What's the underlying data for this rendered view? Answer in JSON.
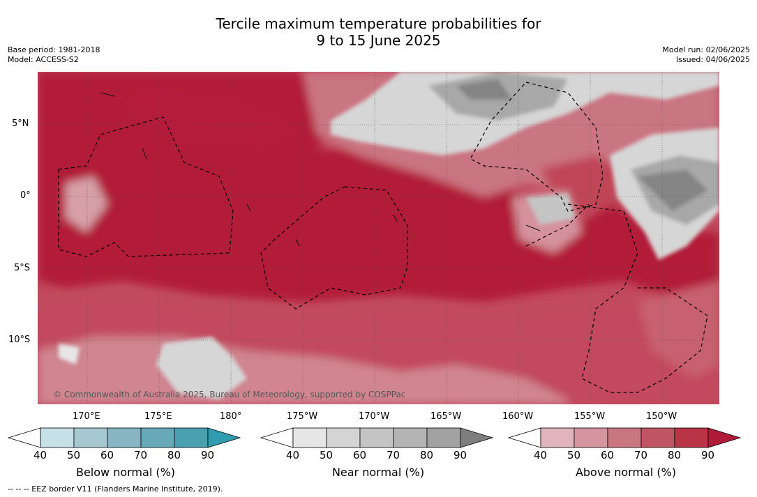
{
  "title": {
    "line1": "Tercile maximum temperature probabilities for",
    "line2": "9 to 15 June 2025"
  },
  "left_meta": {
    "base_period": "Base period: 1981-2018",
    "model": "Model: ACCESS-S2"
  },
  "right_meta": {
    "model_run": "Model run: 02/06/2025",
    "issued": "Issued: 04/06/2025"
  },
  "copyright": "© Commonwealth of Australia 2025, Bureau of Meteorology, supported by COSPPac",
  "lat_ticks": [
    "5°N",
    "0°",
    "5°S",
    "10°S"
  ],
  "lon_ticks": [
    "170°E",
    "175°E",
    "180°",
    "175°W",
    "170°W",
    "165°W",
    "160°W",
    "155°W",
    "150°W"
  ],
  "colorbars": [
    {
      "label": "Below normal (%)",
      "ticks": [
        "40",
        "50",
        "60",
        "70",
        "80",
        "90"
      ],
      "colors": [
        "#ffffff",
        "#c6e0e8",
        "#a6c8d0",
        "#88b5c2",
        "#68a9b9",
        "#4aa0b0",
        "#2f9cb0"
      ]
    },
    {
      "label": "Near normal (%)",
      "ticks": [
        "40",
        "50",
        "60",
        "70",
        "80",
        "90"
      ],
      "colors": [
        "#ffffff",
        "#e6e6e6",
        "#d4d4d4",
        "#c4c4c4",
        "#b4b4b4",
        "#a2a2a2",
        "#7e7e7e"
      ]
    },
    {
      "label": "Above normal (%)",
      "ticks": [
        "40",
        "50",
        "60",
        "70",
        "80",
        "90"
      ],
      "colors": [
        "#ffffff",
        "#e0b4ba",
        "#d4959e",
        "#ca7680",
        "#bf5462",
        "#b83446",
        "#b01c38"
      ]
    }
  ],
  "footnote": "--  --  -- EEZ border V11 (Flanders Marine Institute, 2019).",
  "map_colors": {
    "above_dark": "#b21c38",
    "above_mid": "#bf4a5c",
    "above_light": "#c97180",
    "above_pale": "#d5929c",
    "near_light": "#d6d6d6",
    "near_mid": "#a8a8a8",
    "near_dark": "#858585"
  }
}
